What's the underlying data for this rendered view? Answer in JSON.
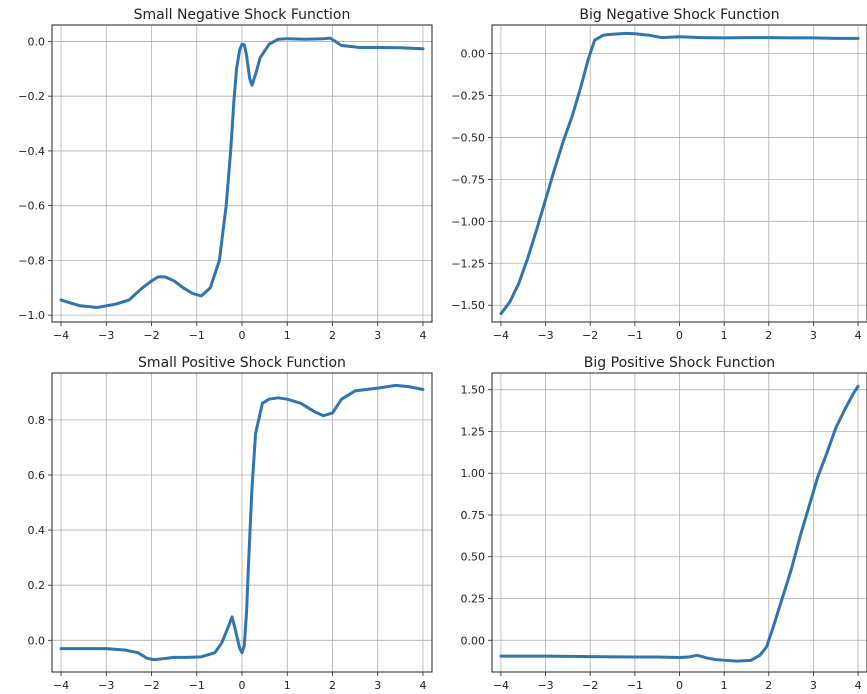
{
  "colors": {
    "series": "#2f75b0",
    "grid": "#b0b0b0",
    "frame": "#222222",
    "background": "#ffffff"
  },
  "chart_data": [
    {
      "type": "line",
      "title": "Small Negative Shock Function",
      "xlabel": "",
      "ylabel": "",
      "xlim": [
        -4.2,
        4.2
      ],
      "ylim": [
        -1.025,
        0.06
      ],
      "xticks": [
        -4,
        -3,
        -2,
        -1,
        0,
        1,
        2,
        3,
        4
      ],
      "xtick_labels": [
        "−4",
        "−3",
        "−2",
        "−1",
        "0",
        "1",
        "2",
        "3",
        "4"
      ],
      "yticks": [
        0.0,
        -0.2,
        -0.4,
        -0.6,
        -0.8,
        -1.0
      ],
      "ytick_labels": [
        "0.0",
        "−0.2",
        "−0.4",
        "−0.6",
        "−0.8",
        "−1.0"
      ],
      "grid": true,
      "series": [
        {
          "x": [
            -4.0,
            -3.6,
            -3.2,
            -2.8,
            -2.5,
            -2.2,
            -2.0,
            -1.85,
            -1.7,
            -1.5,
            -1.3,
            -1.1,
            -0.9,
            -0.7,
            -0.5,
            -0.35,
            -0.25,
            -0.18,
            -0.12,
            -0.05,
            0.0,
            0.05,
            0.1,
            0.17,
            0.22,
            0.3,
            0.4,
            0.6,
            0.8,
            1.0,
            1.4,
            1.8,
            1.95,
            2.2,
            2.6,
            3.0,
            3.5,
            4.0
          ],
          "y": [
            -0.945,
            -0.965,
            -0.972,
            -0.96,
            -0.945,
            -0.9,
            -0.875,
            -0.86,
            -0.86,
            -0.875,
            -0.9,
            -0.92,
            -0.93,
            -0.9,
            -0.8,
            -0.6,
            -0.4,
            -0.22,
            -0.1,
            -0.03,
            -0.01,
            -0.012,
            -0.05,
            -0.135,
            -0.16,
            -0.12,
            -0.06,
            -0.01,
            0.008,
            0.01,
            0.008,
            0.01,
            0.012,
            -0.015,
            -0.022,
            -0.022,
            -0.023,
            -0.027
          ]
        }
      ]
    },
    {
      "type": "line",
      "title": "Big Negative Shock Function",
      "xlabel": "",
      "ylabel": "",
      "xlim": [
        -4.2,
        4.2
      ],
      "ylim": [
        -1.6,
        0.17
      ],
      "xticks": [
        -4,
        -3,
        -2,
        -1,
        0,
        1,
        2,
        3,
        4
      ],
      "xtick_labels": [
        "−4",
        "−3",
        "−2",
        "−1",
        "0",
        "1",
        "2",
        "3",
        "4"
      ],
      "yticks": [
        0.0,
        -0.25,
        -0.5,
        -0.75,
        -1.0,
        -1.25,
        -1.5
      ],
      "ytick_labels": [
        "0.00",
        "−0.25",
        "−0.50",
        "−0.75",
        "−1.00",
        "−1.25",
        "−1.50"
      ],
      "grid": true,
      "series": [
        {
          "x": [
            -4.0,
            -3.8,
            -3.6,
            -3.4,
            -3.2,
            -3.0,
            -2.8,
            -2.6,
            -2.4,
            -2.2,
            -2.05,
            -1.9,
            -1.7,
            -1.5,
            -1.2,
            -1.0,
            -0.7,
            -0.4,
            0.0,
            0.5,
            1.0,
            1.5,
            2.0,
            2.5,
            3.0,
            3.5,
            4.0
          ],
          "y": [
            -1.55,
            -1.48,
            -1.37,
            -1.22,
            -1.05,
            -0.87,
            -0.69,
            -0.52,
            -0.37,
            -0.19,
            -0.04,
            0.08,
            0.11,
            0.115,
            0.12,
            0.118,
            0.11,
            0.095,
            0.1,
            0.095,
            0.093,
            0.095,
            0.095,
            0.093,
            0.093,
            0.09,
            0.09
          ]
        }
      ]
    },
    {
      "type": "line",
      "title": "Small Positive Shock Function",
      "xlabel": "",
      "ylabel": "",
      "xlim": [
        -4.2,
        4.2
      ],
      "ylim": [
        -0.115,
        0.97
      ],
      "xticks": [
        -4,
        -3,
        -2,
        -1,
        0,
        1,
        2,
        3,
        4
      ],
      "xtick_labels": [
        "−4",
        "−3",
        "−2",
        "−1",
        "0",
        "1",
        "2",
        "3",
        "4"
      ],
      "yticks": [
        0.0,
        0.2,
        0.4,
        0.6,
        0.8
      ],
      "ytick_labels": [
        "0.0",
        "0.2",
        "0.4",
        "0.6",
        "0.8"
      ],
      "grid": true,
      "series": [
        {
          "x": [
            -4.0,
            -3.5,
            -3.0,
            -2.6,
            -2.3,
            -2.1,
            -1.95,
            -1.8,
            -1.5,
            -1.2,
            -0.9,
            -0.6,
            -0.45,
            -0.3,
            -0.22,
            -0.15,
            -0.05,
            0.0,
            0.05,
            0.1,
            0.15,
            0.22,
            0.3,
            0.45,
            0.6,
            0.8,
            1.0,
            1.3,
            1.6,
            1.8,
            2.0,
            2.2,
            2.5,
            3.0,
            3.4,
            3.7,
            4.0
          ],
          "y": [
            -0.03,
            -0.03,
            -0.03,
            -0.035,
            -0.045,
            -0.065,
            -0.07,
            -0.068,
            -0.062,
            -0.062,
            -0.06,
            -0.045,
            -0.01,
            0.05,
            0.085,
            0.04,
            -0.03,
            -0.045,
            -0.02,
            0.1,
            0.3,
            0.55,
            0.75,
            0.86,
            0.875,
            0.88,
            0.875,
            0.86,
            0.83,
            0.815,
            0.825,
            0.875,
            0.905,
            0.915,
            0.925,
            0.92,
            0.91
          ]
        }
      ]
    },
    {
      "type": "line",
      "title": "Big Positive Shock Function",
      "xlabel": "",
      "ylabel": "",
      "xlim": [
        -4.2,
        4.2
      ],
      "ylim": [
        -0.19,
        1.6
      ],
      "xticks": [
        -4,
        -3,
        -2,
        -1,
        0,
        1,
        2,
        3,
        4
      ],
      "xtick_labels": [
        "−4",
        "−3",
        "−2",
        "−1",
        "0",
        "1",
        "2",
        "3",
        "4"
      ],
      "yticks": [
        0.0,
        0.25,
        0.5,
        0.75,
        1.0,
        1.25,
        1.5
      ],
      "ytick_labels": [
        "0.00",
        "0.25",
        "0.50",
        "0.75",
        "1.00",
        "1.25",
        "1.50"
      ],
      "grid": true,
      "series": [
        {
          "x": [
            -4.0,
            -3.0,
            -2.0,
            -1.0,
            -0.5,
            0.0,
            0.2,
            0.4,
            0.6,
            0.8,
            1.0,
            1.3,
            1.6,
            1.8,
            1.95,
            2.1,
            2.3,
            2.5,
            2.7,
            2.9,
            3.1,
            3.3,
            3.5,
            3.7,
            3.9,
            4.0
          ],
          "y": [
            -0.095,
            -0.095,
            -0.098,
            -0.1,
            -0.1,
            -0.103,
            -0.1,
            -0.09,
            -0.105,
            -0.115,
            -0.12,
            -0.125,
            -0.12,
            -0.09,
            -0.04,
            0.08,
            0.25,
            0.42,
            0.62,
            0.8,
            0.98,
            1.12,
            1.27,
            1.38,
            1.48,
            1.52
          ]
        }
      ]
    }
  ]
}
